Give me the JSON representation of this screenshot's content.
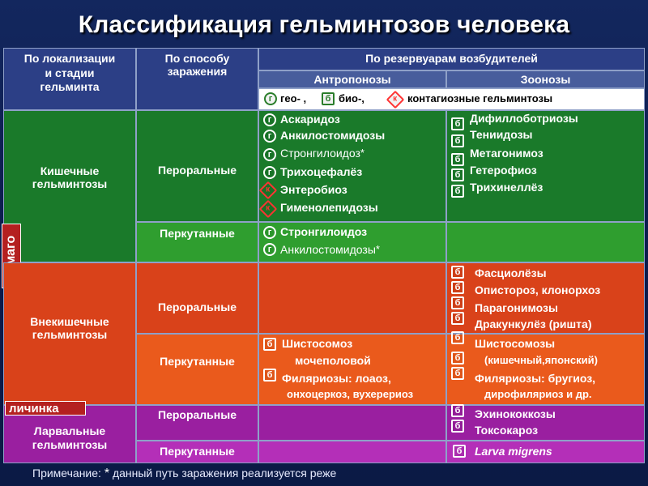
{
  "title": "Классификация гельминтозов человека",
  "headers": {
    "localization": [
      "По локализации",
      "и стадии",
      "гельминта"
    ],
    "infection": [
      "По способу",
      "заражения"
    ],
    "reservoir": "По резервуарам возбудителей",
    "anthroponoses": "Антропонозы",
    "zoonoses": "Зоонозы",
    "legend_geo": "гео- ,",
    "legend_bio": "био-,",
    "legend_contact": "контагиозные гельминтозы"
  },
  "badges": {
    "g": "г",
    "b": "б",
    "k": "к"
  },
  "side_labels": {
    "imago": "имаго",
    "larva": "личинка"
  },
  "groups": {
    "intestinal": [
      "Кишечные",
      "гельминтозы"
    ],
    "extraintestinal": [
      "Внекишечные",
      "гельминтозы"
    ],
    "larval": [
      "Ларвальные",
      "гельминтозы"
    ]
  },
  "routes": {
    "oral": "Пероральные",
    "percutaneous": "Перкутанные"
  },
  "intestinal_oral_anthro": [
    "Аскаридоз",
    "Анкилостомидозы",
    "Стронгилоидоз",
    "Трихоцефалёз",
    "Энтеробиоз",
    "Гименолепидозы"
  ],
  "intestinal_oral_zoo": [
    "Дифиллоботриозы",
    "Тениидозы",
    "Метагонимоз",
    "Гетерофиоз",
    "Трихинеллёз"
  ],
  "intestinal_perc_anthro": [
    "Стронгилоидоз",
    "Анкилостомидозы"
  ],
  "extra_oral_zoo": [
    "Фасциолёзы",
    "Опистороз, клонорхоз",
    "Парагонимозы",
    "Дракункулёз (ришта)"
  ],
  "extra_perc_anthro": [
    "Шистосомоз",
    "мочеполовой",
    "Филяриозы: лоаоз,",
    "онхоцеркоз, вухерериоз"
  ],
  "extra_perc_zoo": [
    "Шистосомозы",
    "(кишечный,японский)",
    "Филяриозы: бругиоз,",
    "дирофиляриоз и др."
  ],
  "larval_oral_zoo": [
    "Эхинококкозы",
    "Токсокароз"
  ],
  "larval_perc_zoo": [
    "Larva migrens"
  ],
  "star": "*",
  "note_prefix": "Примечание:",
  "note_text": "данный путь заражения реализуется реже",
  "colors": {
    "header": "#2c3f86",
    "intestinal": "#1a7a2a",
    "intestinal_light": "#2f9e2f",
    "extraintestinal": "#d9421a",
    "extraintestinal_light": "#ea5a1c",
    "larval": "#9a1fa0",
    "larval_light": "#b42fb8",
    "imago_label": "#b42020"
  }
}
